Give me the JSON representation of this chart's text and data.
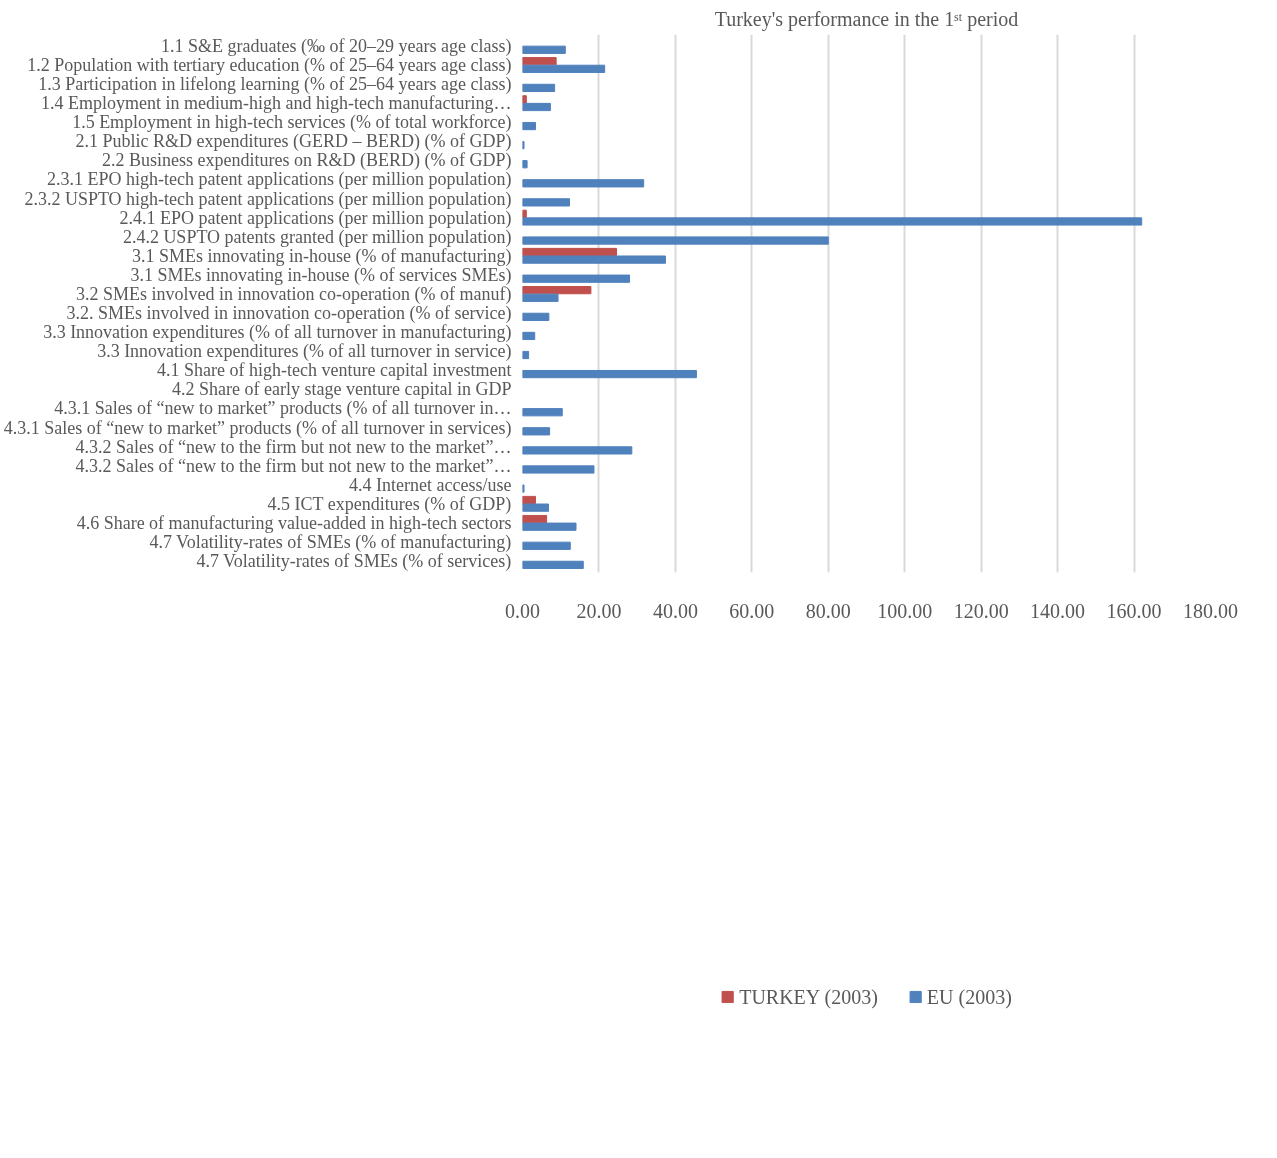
{
  "chart_data": {
    "type": "bar",
    "orientation": "horizontal",
    "title": "Turkey's performance in the 1ˢᵗ period",
    "categories": [
      "1.1 S&E graduates (‰ of 20–29 years age class)",
      "1.2 Population with tertiary education (% of 25–64 years age class)",
      "1.3 Participation in lifelong learning (% of 25–64 years age class)",
      "1.4 Employment in medium-high and high-tech manufacturing…",
      "1.5 Employment in high-tech services (% of total workforce)",
      "2.1 Public R&D expenditures (GERD – BERD) (% of GDP)",
      "2.2 Business expenditures on R&D (BERD) (% of GDP)",
      "2.3.1 EPO high-tech patent applications (per million population)",
      "2.3.2 USPTO high-tech patent applications (per million population)",
      "2.4.1 EPO patent applications (per million population)",
      "2.4.2 USPTO patents granted (per million population)",
      "3.1 SMEs innovating in-house (% of manufacturing)",
      "3.1 SMEs innovating in-house (% of services SMEs)",
      "3.2 SMEs involved in innovation co-operation (% of manuf)",
      "3.2. SMEs involved in innovation co-operation (% of service)",
      "3.3 Innovation expenditures (% of all turnover in manufacturing)",
      "3.3 Innovation expenditures (% of all turnover in service)",
      "4.1 Share of high-tech venture capital investment",
      "4.2 Share of early stage venture capital in GDP",
      "4.3.1 Sales of “new to market” products (% of all turnover in…",
      "4.3.1 Sales of “new to market” products (% of all turnover in services)",
      "4.3.2 Sales of “new to the firm but not new to the market”…",
      "4.3.2 Sales of “new to the firm but not new to the market”…",
      "4.4 Internet access/use",
      "4.5 ICT expenditures (% of GDP)",
      "4.6 Share of manufacturing value-added in high-tech sectors",
      "4.7 Volatility-rates of SMEs (% of manufacturing)",
      "4.7 Volatility-rates of SMEs (% of services)"
    ],
    "series": [
      {
        "name": "TURKEY (2003)",
        "color": "#c0504d",
        "values": [
          null,
          8.8,
          null,
          1.0,
          null,
          null,
          null,
          null,
          null,
          1.0,
          null,
          24.6,
          null,
          17.9,
          null,
          null,
          null,
          null,
          null,
          null,
          null,
          null,
          null,
          null,
          3.4,
          6.3,
          null,
          null
        ]
      },
      {
        "name": "EU (2003)",
        "color": "#4f81bd",
        "values": [
          11.2,
          21.5,
          8.4,
          7.3,
          3.4,
          0.4,
          1.2,
          31.7,
          12.3,
          162,
          80,
          37.4,
          28.0,
          9.3,
          6.9,
          3.2,
          1.6,
          45.5,
          null,
          10.4,
          7.1,
          28.6,
          18.7,
          0.4,
          6.8,
          14.0,
          12.5,
          15.9
        ]
      }
    ],
    "xlim": [
      0,
      180
    ],
    "xticks": [
      {
        "value": 0,
        "label": "0.00"
      },
      {
        "value": 20,
        "label": "20.00"
      },
      {
        "value": 40,
        "label": "40.00"
      },
      {
        "value": 60,
        "label": "60.00"
      },
      {
        "value": 80,
        "label": "80.00"
      },
      {
        "value": 100,
        "label": "100.00"
      },
      {
        "value": 120,
        "label": "120.00"
      },
      {
        "value": 140,
        "label": "140.00"
      },
      {
        "value": 160,
        "label": "160.00"
      },
      {
        "value": 180,
        "label": "180.00"
      }
    ],
    "grid": "x",
    "legend": "bottom"
  }
}
